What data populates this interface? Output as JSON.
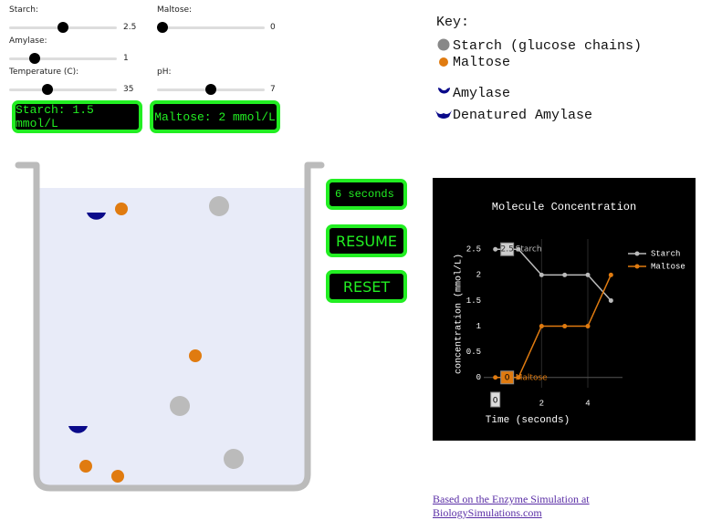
{
  "controls": [
    {
      "label": "Starch:",
      "value": 2.5
    },
    {
      "label": "Maltose:",
      "value": 0
    },
    {
      "label": "Amylase:",
      "value": 1
    },
    {
      "label": "Temperature (C):",
      "value": 35
    },
    {
      "label": "pH:",
      "value": 7
    }
  ],
  "displays": {
    "starch": "Starch: 1.5  mmol/L",
    "maltose": "Maltose: 2  mmol/L",
    "timer": "6 seconds"
  },
  "buttons": [
    "RESUME",
    "RESET"
  ],
  "key": {
    "title": "Key:",
    "items": [
      "Starch (glucose chains)",
      "Maltose",
      "Amylase",
      "Denatured Amylase"
    ]
  },
  "footer": "Based on the Enzyme Simulation at BiologySimulations.com",
  "chart_data": {
    "type": "line",
    "title": "Molecule Concentration",
    "x_label": "Time (seconds)",
    "y_label": "concentration (mmol/L)",
    "x": [
      0,
      1,
      2,
      3,
      4,
      5
    ],
    "series": [
      {
        "name": "Starch",
        "color": "#bbbbbb",
        "values": [
          2.5,
          2.5,
          2,
          2,
          2,
          1.5
        ]
      },
      {
        "name": "Maltose",
        "color": "#e07b10",
        "values": [
          0,
          0,
          1,
          1,
          1,
          2
        ]
      }
    ],
    "xlim": [
      -0.5,
      5.5
    ],
    "ylim": [
      -0.2,
      2.7
    ],
    "xticks": [
      2,
      4
    ],
    "yticks": [
      0,
      0.5,
      1,
      1.5,
      2,
      2.5
    ],
    "grid": true,
    "legend": "upper right",
    "hover_labels": [
      {
        "label": "2.5",
        "series": "Starch"
      },
      {
        "label": "0",
        "series": "Maltose"
      }
    ],
    "x_hover_label": "0"
  }
}
